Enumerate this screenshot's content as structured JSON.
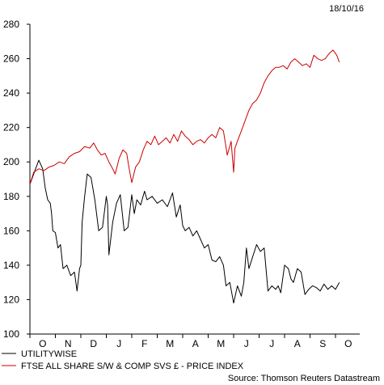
{
  "date_stamp": "18/10/16",
  "source": "Source: Thomson Reuters Datastream",
  "colors": {
    "utilitywise": "#000000",
    "ftse": "#cc0000",
    "axis": "#000000"
  },
  "chart_data": {
    "type": "line",
    "x_months": [
      "O",
      "N",
      "D",
      "J",
      "F",
      "M",
      "A",
      "M",
      "J",
      "J",
      "A",
      "S",
      "O"
    ],
    "x_start_month_index": 0,
    "ylim": [
      100,
      280
    ],
    "yticks": [
      100,
      120,
      140,
      160,
      180,
      200,
      220,
      240,
      260,
      280
    ],
    "grid": false,
    "legend": "bottom",
    "series": [
      {
        "name": "UTILITYWISE",
        "color": "#000000",
        "x": [
          0.0,
          0.15,
          0.35,
          0.5,
          0.6,
          0.7,
          0.8,
          0.85,
          0.9,
          1.0,
          1.1,
          1.2,
          1.3,
          1.45,
          1.6,
          1.75,
          1.85,
          1.95,
          2.0,
          2.05,
          2.15,
          2.25,
          2.4,
          2.55,
          2.7,
          2.85,
          3.0,
          3.05,
          3.1,
          3.25,
          3.4,
          3.55,
          3.7,
          3.85,
          4.0,
          4.1,
          4.2,
          4.35,
          4.5,
          4.6,
          4.8,
          5.0,
          5.2,
          5.4,
          5.6,
          5.75,
          5.9,
          6.0,
          6.1,
          6.25,
          6.4,
          6.55,
          6.7,
          6.85,
          7.0,
          7.15,
          7.3,
          7.45,
          7.6,
          7.7,
          7.85,
          8.0,
          8.15,
          8.3,
          8.4,
          8.5,
          8.6,
          8.75,
          8.9,
          9.05,
          9.2,
          9.35,
          9.5,
          9.65,
          9.75,
          9.85,
          10.0,
          10.15,
          10.25,
          10.35,
          10.5,
          10.65,
          10.8,
          10.95,
          11.1,
          11.25,
          11.4,
          11.55,
          11.7,
          11.85,
          12.0,
          12.15
        ],
        "values": [
          187,
          193,
          201,
          196,
          185,
          178,
          176,
          170,
          160,
          159,
          150,
          152,
          138,
          140,
          134,
          136,
          125,
          138,
          140,
          165,
          180,
          193,
          191,
          178,
          160,
          162,
          180,
          175,
          146,
          165,
          176,
          181,
          160,
          162,
          181,
          170,
          178,
          175,
          183,
          178,
          180,
          176,
          178,
          174,
          182,
          168,
          175,
          163,
          160,
          162,
          157,
          160,
          155,
          150,
          152,
          143,
          142,
          145,
          140,
          128,
          130,
          118,
          128,
          122,
          130,
          150,
          138,
          145,
          152,
          148,
          150,
          125,
          128,
          126,
          128,
          124,
          140,
          138,
          132,
          130,
          138,
          136,
          123,
          126,
          128,
          127,
          125,
          129,
          126,
          128,
          126,
          130
        ]
      },
      {
        "name": "FTSE ALL SHARE S/W & COMP SVS £ - PRICE INDEX",
        "color": "#cc0000",
        "x": [
          0.0,
          0.15,
          0.35,
          0.55,
          0.75,
          0.95,
          1.15,
          1.35,
          1.55,
          1.75,
          1.95,
          2.15,
          2.35,
          2.5,
          2.65,
          2.8,
          2.95,
          3.1,
          3.25,
          3.35,
          3.5,
          3.65,
          3.8,
          3.9,
          4.0,
          4.15,
          4.3,
          4.45,
          4.6,
          4.75,
          4.9,
          5.05,
          5.2,
          5.35,
          5.5,
          5.65,
          5.8,
          5.95,
          6.1,
          6.25,
          6.4,
          6.55,
          6.7,
          6.85,
          7.0,
          7.15,
          7.3,
          7.45,
          7.6,
          7.75,
          7.9,
          8.0,
          8.05,
          8.15,
          8.3,
          8.45,
          8.6,
          8.75,
          8.9,
          9.05,
          9.2,
          9.35,
          9.5,
          9.65,
          9.8,
          9.95,
          10.1,
          10.25,
          10.4,
          10.55,
          10.7,
          10.85,
          11.0,
          11.15,
          11.3,
          11.45,
          11.6,
          11.75,
          11.9,
          12.05,
          12.15
        ],
        "values": [
          187,
          194,
          196,
          195,
          197,
          198,
          200,
          199,
          203,
          205,
          206,
          209,
          208,
          211,
          207,
          204,
          205,
          200,
          196,
          193,
          202,
          207,
          205,
          196,
          188,
          197,
          200,
          207,
          212,
          210,
          215,
          210,
          212,
          214,
          211,
          216,
          212,
          218,
          215,
          213,
          210,
          212,
          213,
          211,
          214,
          216,
          214,
          220,
          218,
          204,
          212,
          194,
          208,
          212,
          218,
          224,
          230,
          234,
          236,
          240,
          246,
          250,
          253,
          255,
          255,
          256,
          254,
          258,
          260,
          258,
          256,
          257,
          255,
          262,
          260,
          259,
          260,
          263,
          265,
          262,
          258
        ]
      }
    ]
  }
}
